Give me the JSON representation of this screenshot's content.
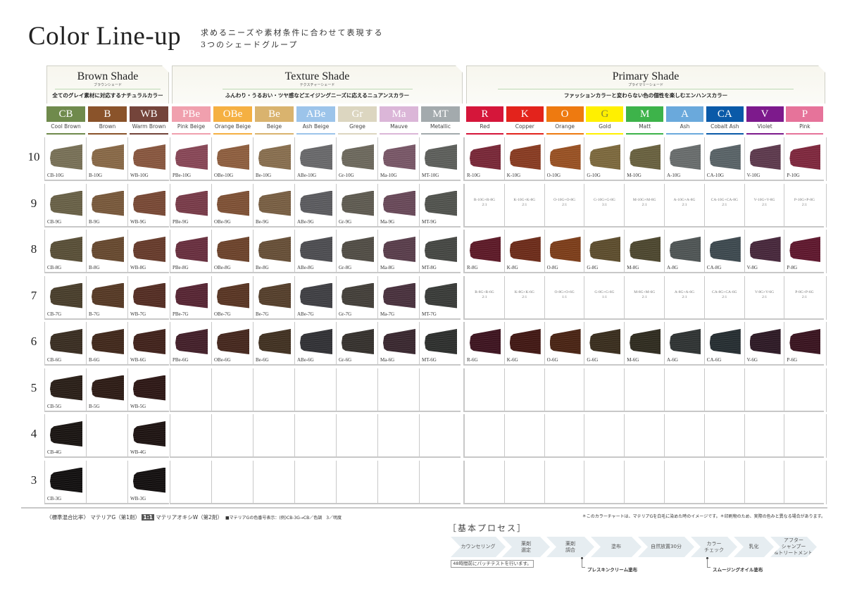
{
  "header": {
    "title": "Color Line-up",
    "subtitle_line1": "求めるニーズや素材条件に合わせて表現する",
    "subtitle_line2": "3つのシェードグループ"
  },
  "groups": [
    {
      "title": "Brown Shade",
      "kana": "ブラウンシェード",
      "desc": "全てのグレイ素材に対応するナチュラルカラー"
    },
    {
      "title": "Texture Shade",
      "kana": "テクスチャーシェード",
      "desc": "ふんわり・うるおい・ツヤ感などエイジングニーズに応えるニュアンスカラー"
    },
    {
      "title": "Primary Shade",
      "kana": "プライマリーシェード",
      "desc": "ファッションカラーと変わらない色の個性を楽しむエンハンスカラー"
    }
  ],
  "levels": [
    "10",
    "9",
    "8",
    "7",
    "6",
    "5",
    "4",
    "3"
  ],
  "columns": [
    {
      "group": 0,
      "abbr": "CB",
      "name": "Cool Brown",
      "color": "#6f8a4c",
      "cells": [
        [
          "CB-10G",
          "#7a7258"
        ],
        [
          "CB-9G",
          "#6a6248"
        ],
        [
          "CB-8G",
          "#5a5038"
        ],
        [
          "CB-7G",
          "#4a3f2c"
        ],
        [
          "CB-6G",
          "#3a2e22"
        ],
        [
          "CB-5G",
          "#2a1f18"
        ],
        [
          "CB-4G",
          "#1a1512"
        ],
        [
          "CB-3G",
          "#121010"
        ]
      ]
    },
    {
      "group": 0,
      "abbr": "B",
      "name": "Brown",
      "color": "#8a532a",
      "cells": [
        [
          "B-10G",
          "#8a6a48"
        ],
        [
          "B-9G",
          "#7a5a3c"
        ],
        [
          "B-8G",
          "#684a30"
        ],
        [
          "B-7G",
          "#573a26"
        ],
        [
          "B-6G",
          "#42291c"
        ],
        [
          "B-5G",
          "#2e1c16"
        ],
        null,
        null
      ]
    },
    {
      "group": 0,
      "abbr": "WB",
      "name": "Warm Brown",
      "color": "#74443a",
      "cells": [
        [
          "WB-10G",
          "#8a5840"
        ],
        [
          "WB-9G",
          "#7a4a36"
        ],
        [
          "WB-8G",
          "#683c2c"
        ],
        [
          "WB-7G",
          "#552e24"
        ],
        [
          "WB-6G",
          "#42231c"
        ],
        [
          "WB-5G",
          "#2e1816"
        ],
        [
          "WB-4G",
          "#1e1412"
        ],
        [
          "WB-3G",
          "#141010"
        ]
      ]
    },
    {
      "group": 1,
      "abbr": "PBe",
      "name": "Pink Beige",
      "color": "#f0a0ae",
      "cells": [
        [
          "PBe-10G",
          "#8a4858"
        ],
        [
          "PBe-9G",
          "#7a3c4a"
        ],
        [
          "PBe-8G",
          "#6a3040"
        ],
        [
          "PBe-7G",
          "#582634"
        ],
        [
          "PBe-6G",
          "#44202a"
        ],
        null,
        null,
        null
      ]
    },
    {
      "group": 1,
      "abbr": "OBe",
      "name": "Orange Beige",
      "color": "#f5b042",
      "cells": [
        [
          "OBe-10G",
          "#906040"
        ],
        [
          "OBe-9G",
          "#805236"
        ],
        [
          "OBe-8G",
          "#6e442c"
        ],
        [
          "OBe-7G",
          "#5a3624"
        ],
        [
          "OBe-6G",
          "#46281e"
        ],
        null,
        null,
        null
      ]
    },
    {
      "group": 1,
      "abbr": "Be",
      "name": "Beige",
      "color": "#d9b36e",
      "cells": [
        [
          "Be-10G",
          "#8a7050"
        ],
        [
          "Be-9G",
          "#7a6044"
        ],
        [
          "Be-8G",
          "#685038"
        ],
        [
          "Be-7G",
          "#56402c"
        ],
        [
          "Be-6G",
          "#423222"
        ],
        null,
        null,
        null
      ]
    },
    {
      "group": 1,
      "abbr": "ABe",
      "name": "Ash Beige",
      "color": "#9cc4ea",
      "cells": [
        [
          "ABe-10G",
          "#6a6a6c"
        ],
        [
          "ABe-9G",
          "#5c5c60"
        ],
        [
          "ABe-8G",
          "#4e4e52"
        ],
        [
          "ABe-7G",
          "#404044"
        ],
        [
          "ABe-6G",
          "#323236"
        ],
        null,
        null,
        null
      ]
    },
    {
      "group": 1,
      "abbr": "Gr",
      "name": "Grege",
      "color": "#dcd6c0",
      "cells": [
        [
          "Gr-10G",
          "#6e6a5e"
        ],
        [
          "Gr-9G",
          "#605c52"
        ],
        [
          "Gr-8G",
          "#524e46"
        ],
        [
          "Gr-7G",
          "#44403a"
        ],
        [
          "Gr-6G",
          "#36322e"
        ],
        null,
        null,
        null
      ]
    },
    {
      "group": 1,
      "abbr": "Ma",
      "name": "Mauve",
      "color": "#dbb6d8",
      "cells": [
        [
          "Ma-10G",
          "#7a5868"
        ],
        [
          "Ma-9G",
          "#6a4a5a"
        ],
        [
          "Ma-8G",
          "#5a3e4c"
        ],
        [
          "Ma-7G",
          "#4a323e"
        ],
        [
          "Ma-6G",
          "#3a2830"
        ],
        null,
        null,
        null
      ]
    },
    {
      "group": 1,
      "abbr": "MT",
      "name": "Metallic",
      "color": "#a3aaad",
      "cells": [
        [
          "MT-10G",
          "#5e605c"
        ],
        [
          "MT-9G",
          "#52544f"
        ],
        [
          "MT-8G",
          "#464844"
        ],
        [
          "MT-7G",
          "#3a3c39"
        ],
        [
          "MT-6G",
          "#2e302e"
        ],
        null,
        null,
        null
      ]
    },
    {
      "group": 2,
      "abbr": "R",
      "name": "Red",
      "color": "#d5163a",
      "cells": [
        [
          "R-10G",
          "#7a2838"
        ],
        {
          "mix": "R-10G+R-8G",
          "ratio": "2:1"
        },
        [
          "R-8G",
          "#5e1a28"
        ],
        {
          "mix": "R-8G+R-6G",
          "ratio": "2:1"
        },
        [
          "R-6G",
          "#3e1420"
        ],
        null,
        null,
        null
      ]
    },
    {
      "group": 2,
      "abbr": "K",
      "name": "Copper",
      "color": "#e3231c",
      "cells": [
        [
          "K-10G",
          "#8a3c22"
        ],
        {
          "mix": "K-10G+K-8G",
          "ratio": "2:1"
        },
        [
          "K-8G",
          "#6e2c1a"
        ],
        {
          "mix": "K-8G+K-6G",
          "ratio": "2:1"
        },
        [
          "K-6G",
          "#421814"
        ],
        null,
        null,
        null
      ]
    },
    {
      "group": 2,
      "abbr": "O",
      "name": "Orange",
      "color": "#ee7a10",
      "cells": [
        [
          "O-10G",
          "#9a5224"
        ],
        {
          "mix": "O-10G+O-8G",
          "ratio": "2:1"
        },
        [
          "O-8G",
          "#7e3e1a"
        ],
        {
          "mix": "O-8G+O-6G",
          "ratio": "1:1"
        },
        [
          "O-6G",
          "#4a2414"
        ],
        null,
        null,
        null
      ]
    },
    {
      "group": 2,
      "abbr": "G",
      "name": "Gold",
      "color": "#fff000",
      "cells": [
        [
          "G-10G",
          "#7e6a3e"
        ],
        {
          "mix": "G-10G+G-8G",
          "ratio": "3:1"
        },
        [
          "G-8G",
          "#5e4e2e"
        ],
        {
          "mix": "G-8G+G-6G",
          "ratio": "1:1"
        },
        [
          "G-6G",
          "#3a2e1e"
        ],
        null,
        null,
        null
      ]
    },
    {
      "group": 2,
      "abbr": "M",
      "name": "Matt",
      "color": "#3db34a",
      "cells": [
        [
          "M-10G",
          "#6a6240"
        ],
        {
          "mix": "M-10G+M-8G",
          "ratio": "2:1"
        },
        [
          "M-8G",
          "#4e4830"
        ],
        {
          "mix": "M-8G+M-6G",
          "ratio": "2:1"
        },
        [
          "M-6G",
          "#302c20"
        ],
        null,
        null,
        null
      ]
    },
    {
      "group": 2,
      "abbr": "A",
      "name": "Ash",
      "color": "#6aa9dc",
      "cells": [
        [
          "A-10G",
          "#6a6e6e"
        ],
        {
          "mix": "A-10G+A-8G",
          "ratio": "2:1"
        },
        [
          "A-8G",
          "#505656"
        ],
        {
          "mix": "A-8G+A-6G",
          "ratio": "2:1"
        },
        [
          "A-6G",
          "#303434"
        ],
        null,
        null,
        null
      ]
    },
    {
      "group": 2,
      "abbr": "CA",
      "name": "Cobalt Ash",
      "color": "#0a5aa8",
      "cells": [
        [
          "CA-10G",
          "#5a6468"
        ],
        {
          "mix": "CA-10G+CA-8G",
          "ratio": "2:1"
        },
        [
          "CA-8G",
          "#3e4a50"
        ],
        {
          "mix": "CA-8G+CA-6G",
          "ratio": "2:1"
        },
        [
          "CA-6G",
          "#262e32"
        ],
        null,
        null,
        null
      ]
    },
    {
      "group": 2,
      "abbr": "V",
      "name": "Violet",
      "color": "#7d1a8c",
      "cells": [
        [
          "V-10G",
          "#5e3a4e"
        ],
        {
          "mix": "V-10G+V-8G",
          "ratio": "2:1"
        },
        [
          "V-8G",
          "#48283c"
        ],
        {
          "mix": "V-8G+V-6G",
          "ratio": "2:1"
        },
        [
          "V-6G",
          "#2e1a26"
        ],
        null,
        null,
        null
      ]
    },
    {
      "group": 2,
      "abbr": "P",
      "name": "Pink",
      "color": "#e6739a",
      "cells": [
        [
          "P-10G",
          "#80283e"
        ],
        {
          "mix": "P-10G+P-8G",
          "ratio": "2:1"
        },
        [
          "P-8G",
          "#60182e"
        ],
        {
          "mix": "P-8G+P-6G",
          "ratio": "2:1"
        },
        [
          "P-6G",
          "#3a1420"
        ],
        null,
        null,
        null
      ]
    }
  ],
  "footer": {
    "mix_label": "〈標準混合比率〉",
    "agent1": "マテリアG（第1剤）",
    "ratio": "1:1",
    "agent2": "マテリアオキシW（第2剤）",
    "code_note": "■マテリアGの色番号表示：(例)CB-3G→CB／色調　3／明度",
    "chart_note": "＊このカラーチャートは、マテリアGを白毛に染めた時のイメージです。＊印刷物のため、実際の色みと異なる場合があります。"
  },
  "process": {
    "title": "［基本プロセス］",
    "steps": [
      "カウンセリング",
      "薬剤\n選定",
      "薬剤\n調合",
      "塗布",
      "自然放置30分",
      "カラー\nチェック",
      "乳化",
      "アフター\nシャンプー\n&トリートメント"
    ],
    "patch_test": "48時間前にパッチテストを行います。",
    "note1": "プレスキンクリーム塗布",
    "note2": "スムージングオイル塗布"
  }
}
